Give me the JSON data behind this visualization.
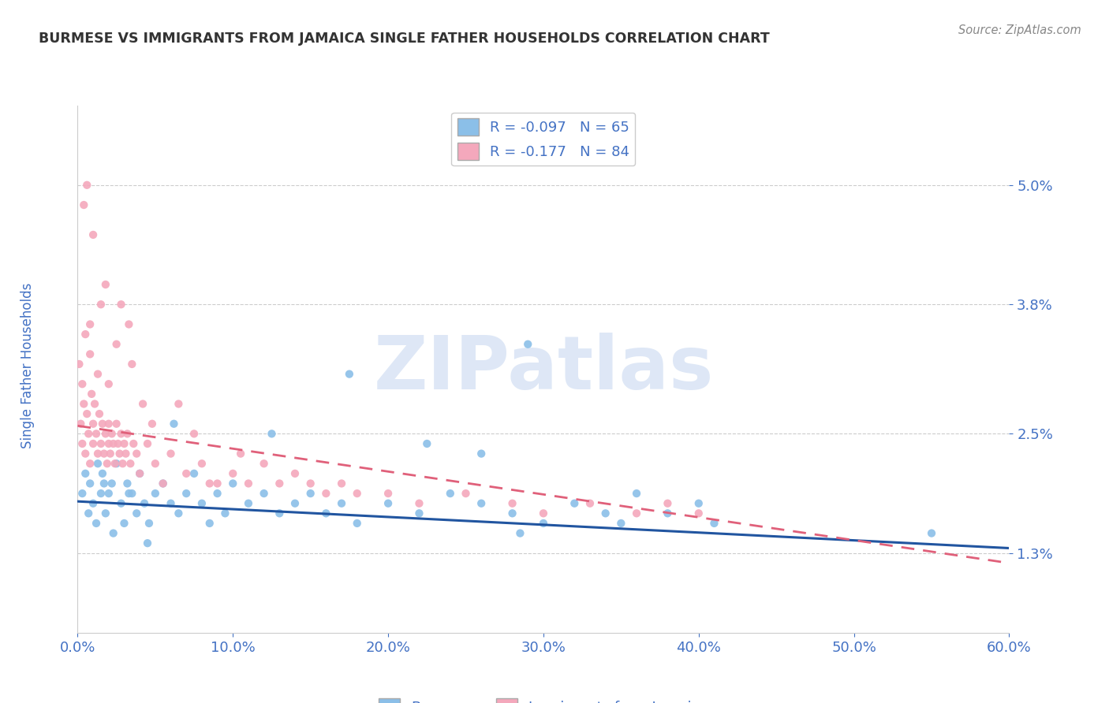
{
  "title": "BURMESE VS IMMIGRANTS FROM JAMAICA SINGLE FATHER HOUSEHOLDS CORRELATION CHART",
  "source": "Source: ZipAtlas.com",
  "ylabel": "Single Father Households",
  "xlabel_ticks": [
    "0.0%",
    "10.0%",
    "20.0%",
    "30.0%",
    "40.0%",
    "50.0%",
    "60.0%"
  ],
  "xlabel_vals": [
    0.0,
    10.0,
    20.0,
    30.0,
    40.0,
    50.0,
    60.0
  ],
  "ytick_vals": [
    1.3,
    2.5,
    3.8,
    5.0
  ],
  "ytick_labels": [
    "1.3%",
    "2.5%",
    "3.8%",
    "5.0%"
  ],
  "xlim": [
    0.0,
    60.0
  ],
  "ylim": [
    0.5,
    5.8
  ],
  "legend_r_blue": "R = -0.097",
  "legend_n_blue": "N = 65",
  "legend_r_pink": "R = -0.177",
  "legend_n_pink": "N = 84",
  "color_blue": "#8bbfe8",
  "color_blue_line": "#2155a0",
  "color_pink": "#f4a8bc",
  "color_pink_line": "#e0607a",
  "watermark": "ZIPatlas",
  "watermark_color": "#c8d8f0",
  "title_color": "#333333",
  "axis_label_color": "#4472c4",
  "tick_color": "#4472c4",
  "blue_trendline_start": 1.82,
  "blue_trendline_end": 1.35,
  "pink_trendline_start": 2.58,
  "pink_trendline_end": 1.2,
  "blue_scatter_x": [
    0.3,
    0.5,
    0.7,
    0.8,
    1.0,
    1.2,
    1.3,
    1.5,
    1.6,
    1.8,
    2.0,
    2.2,
    2.5,
    2.8,
    3.0,
    3.2,
    3.5,
    3.8,
    4.0,
    4.3,
    4.6,
    5.0,
    5.5,
    6.0,
    6.5,
    7.0,
    7.5,
    8.0,
    8.5,
    9.0,
    9.5,
    10.0,
    11.0,
    12.0,
    13.0,
    14.0,
    15.0,
    16.0,
    17.0,
    18.0,
    20.0,
    22.0,
    24.0,
    26.0,
    28.0,
    30.0,
    32.0,
    34.0,
    36.0,
    38.0,
    40.0,
    41.0,
    26.0,
    28.5,
    22.5,
    12.5,
    6.2,
    3.3,
    2.3,
    1.7,
    4.5,
    35.0,
    55.0,
    17.5,
    29.0
  ],
  "blue_scatter_y": [
    1.9,
    2.1,
    1.7,
    2.0,
    1.8,
    1.6,
    2.2,
    1.9,
    2.1,
    1.7,
    1.9,
    2.0,
    2.2,
    1.8,
    1.6,
    2.0,
    1.9,
    1.7,
    2.1,
    1.8,
    1.6,
    1.9,
    2.0,
    1.8,
    1.7,
    1.9,
    2.1,
    1.8,
    1.6,
    1.9,
    1.7,
    2.0,
    1.8,
    1.9,
    1.7,
    1.8,
    1.9,
    1.7,
    1.8,
    1.6,
    1.8,
    1.7,
    1.9,
    1.8,
    1.7,
    1.6,
    1.8,
    1.7,
    1.9,
    1.7,
    1.8,
    1.6,
    2.3,
    1.5,
    2.4,
    2.5,
    2.6,
    1.9,
    1.5,
    2.0,
    1.4,
    1.6,
    1.5,
    3.1,
    3.4
  ],
  "pink_scatter_x": [
    0.1,
    0.2,
    0.3,
    0.3,
    0.4,
    0.5,
    0.5,
    0.6,
    0.7,
    0.8,
    0.8,
    0.9,
    1.0,
    1.0,
    1.1,
    1.2,
    1.3,
    1.4,
    1.5,
    1.6,
    1.7,
    1.8,
    1.9,
    2.0,
    2.0,
    2.1,
    2.2,
    2.3,
    2.4,
    2.5,
    2.6,
    2.7,
    2.8,
    2.9,
    3.0,
    3.1,
    3.2,
    3.4,
    3.6,
    3.8,
    4.0,
    4.5,
    5.0,
    5.5,
    6.0,
    7.0,
    8.0,
    9.0,
    10.0,
    11.0,
    12.0,
    13.0,
    14.0,
    15.0,
    16.0,
    17.0,
    18.0,
    20.0,
    22.0,
    25.0,
    28.0,
    30.0,
    33.0,
    36.0,
    38.0,
    40.0,
    1.0,
    1.5,
    2.0,
    2.5,
    0.6,
    1.8,
    3.5,
    4.2,
    0.4,
    0.8,
    1.3,
    6.5,
    7.5,
    3.3,
    2.8,
    4.8,
    10.5,
    8.5
  ],
  "pink_scatter_y": [
    3.2,
    2.6,
    2.4,
    3.0,
    2.8,
    2.3,
    3.5,
    2.7,
    2.5,
    2.2,
    3.3,
    2.9,
    2.6,
    2.4,
    2.8,
    2.5,
    2.3,
    2.7,
    2.4,
    2.6,
    2.3,
    2.5,
    2.2,
    2.6,
    2.4,
    2.3,
    2.5,
    2.4,
    2.2,
    2.6,
    2.4,
    2.3,
    2.5,
    2.2,
    2.4,
    2.3,
    2.5,
    2.2,
    2.4,
    2.3,
    2.1,
    2.4,
    2.2,
    2.0,
    2.3,
    2.1,
    2.2,
    2.0,
    2.1,
    2.0,
    2.2,
    2.0,
    2.1,
    2.0,
    1.9,
    2.0,
    1.9,
    1.9,
    1.8,
    1.9,
    1.8,
    1.7,
    1.8,
    1.7,
    1.8,
    1.7,
    4.5,
    3.8,
    3.0,
    3.4,
    5.0,
    4.0,
    3.2,
    2.8,
    4.8,
    3.6,
    3.1,
    2.8,
    2.5,
    3.6,
    3.8,
    2.6,
    2.3,
    2.0
  ]
}
